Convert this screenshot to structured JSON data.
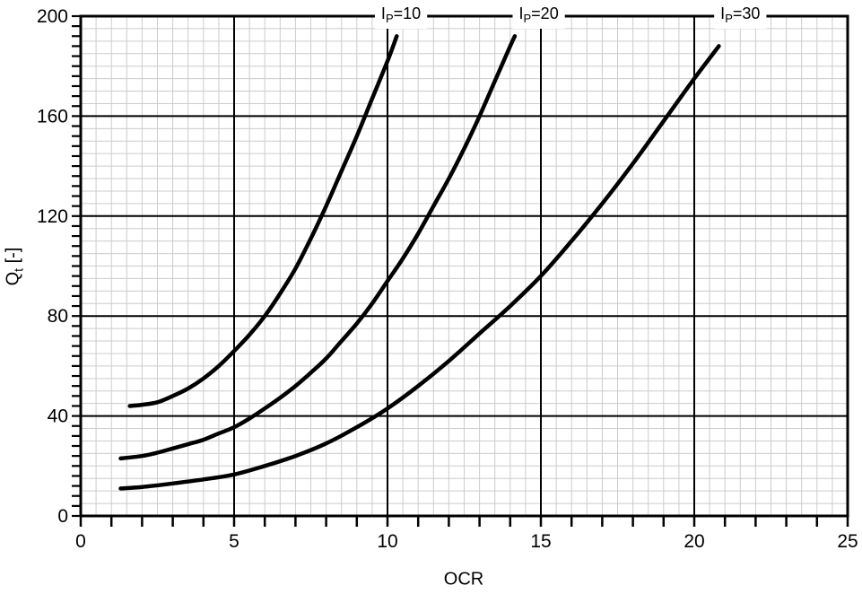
{
  "page": {
    "background": "#ffffff"
  },
  "chart_data": {
    "type": "line",
    "title": "",
    "xlabel": "OCR",
    "ylabel": {
      "pre": "Q",
      "sub": "t",
      "post": " [-]"
    },
    "xlim": [
      0,
      25
    ],
    "ylim": [
      0,
      200
    ],
    "xticks": [
      0,
      5,
      10,
      15,
      20,
      25
    ],
    "yticks": [
      0,
      40,
      80,
      120,
      160,
      200
    ],
    "minor": {
      "x_grid": 0.5,
      "y_grid": 5,
      "x_tick": 1,
      "y_tick": 4
    },
    "grid": "on",
    "legend_position": "labels-above-curves",
    "colors": {
      "curve": "#000000",
      "major_grid": "#000000",
      "minor_grid": "#cccccc",
      "axis": "#000000",
      "label_bg": "#ffffff",
      "text": "#000000"
    },
    "series": [
      {
        "name": {
          "pre": "I",
          "sub": "P",
          "post": "=10"
        },
        "label_x": 10.44,
        "points": [
          [
            1.6,
            44
          ],
          [
            2,
            44.5
          ],
          [
            2.5,
            45.5
          ],
          [
            3,
            48
          ],
          [
            3.5,
            51
          ],
          [
            4,
            55
          ],
          [
            4.5,
            60
          ],
          [
            5,
            66
          ],
          [
            5.5,
            72.5
          ],
          [
            6,
            80
          ],
          [
            6.5,
            89
          ],
          [
            7,
            99
          ],
          [
            7.5,
            111
          ],
          [
            8,
            124
          ],
          [
            8.5,
            138
          ],
          [
            9,
            152
          ],
          [
            9.5,
            167
          ],
          [
            10,
            182
          ],
          [
            10.3,
            192
          ]
        ]
      },
      {
        "name": {
          "pre": "I",
          "sub": "P",
          "post": "=20"
        },
        "label_x": 14.93,
        "points": [
          [
            1.3,
            23
          ],
          [
            2,
            24
          ],
          [
            2.5,
            25.3
          ],
          [
            3,
            27
          ],
          [
            3.5,
            28.7
          ],
          [
            4,
            30.5
          ],
          [
            4.5,
            33
          ],
          [
            5,
            35.5
          ],
          [
            5.5,
            39
          ],
          [
            6,
            43
          ],
          [
            6.5,
            47.3
          ],
          [
            7,
            52
          ],
          [
            7.5,
            57.3
          ],
          [
            8,
            63
          ],
          [
            8.5,
            70
          ],
          [
            9,
            77
          ],
          [
            9.5,
            85
          ],
          [
            10,
            94
          ],
          [
            10.5,
            103
          ],
          [
            11,
            113
          ],
          [
            11.5,
            124
          ],
          [
            12,
            135
          ],
          [
            12.5,
            147
          ],
          [
            13,
            160
          ],
          [
            13.5,
            174
          ],
          [
            14,
            188
          ],
          [
            14.15,
            192
          ]
        ]
      },
      {
        "name": {
          "pre": "I",
          "sub": "P",
          "post": "=30"
        },
        "label_x": 21.5,
        "points": [
          [
            1.3,
            11
          ],
          [
            2,
            11.6
          ],
          [
            3,
            13
          ],
          [
            4,
            14.6
          ],
          [
            5,
            16.6
          ],
          [
            6,
            20
          ],
          [
            7,
            24
          ],
          [
            8,
            29
          ],
          [
            9,
            35.5
          ],
          [
            10,
            43
          ],
          [
            11,
            52
          ],
          [
            12,
            62
          ],
          [
            13,
            73
          ],
          [
            14,
            84
          ],
          [
            15,
            96
          ],
          [
            16,
            110
          ],
          [
            17,
            125
          ],
          [
            18,
            141
          ],
          [
            19,
            158
          ],
          [
            20,
            175
          ],
          [
            20.8,
            188
          ]
        ]
      }
    ]
  }
}
